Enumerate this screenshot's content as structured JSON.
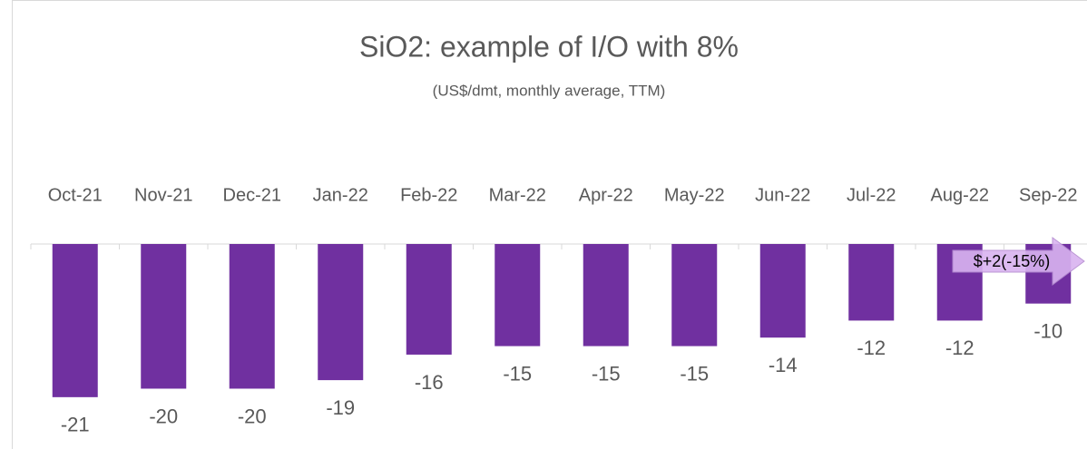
{
  "chart_data": {
    "type": "bar",
    "title": "SiO2: example of I/O with 8%",
    "subtitle": "(US$/dmt, monthly average, TTM)",
    "categories": [
      "Oct-21",
      "Nov-21",
      "Dec-21",
      "Jan-22",
      "Feb-22",
      "Mar-22",
      "Apr-22",
      "May-22",
      "Jun-22",
      "Jul-22",
      "Aug-22",
      "Sep-22"
    ],
    "values": [
      -21,
      -20,
      -20,
      -19,
      -16,
      -15,
      -15,
      -15,
      -14,
      -12,
      -12,
      -10
    ],
    "color": "#7030a0",
    "ylim": [
      -24,
      -3
    ],
    "annotation": "$+2(-15%)"
  }
}
